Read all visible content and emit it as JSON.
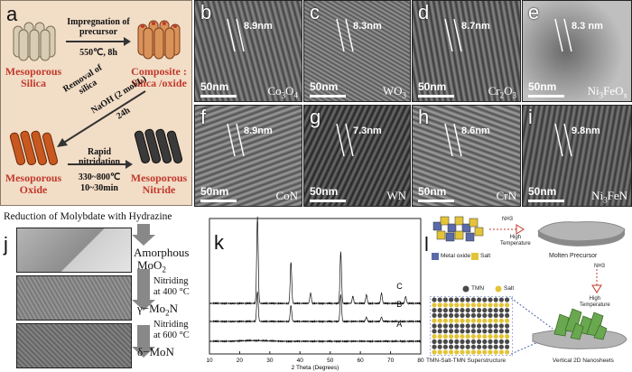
{
  "panels": {
    "a": {
      "label": "a",
      "mesoporous_silica": "Mesoporous Silica",
      "impregnation": "Impregnation of precursor",
      "impregnation_cond": "550℃, 8h",
      "composite": "Composite : Silica /oxide",
      "removal": "Removal of silica",
      "removal_cond1": "NaOH (2 mol/L)",
      "removal_cond2": "24h",
      "nitridation": "Rapid nitridation",
      "nitridation_cond1": "330~800℃",
      "nitridation_cond2": "10~30min",
      "mesoporous_oxide": "Mesoporous Oxide",
      "mesoporous_nitride": "Mesoporous Nitride"
    },
    "tem": [
      {
        "label": "b",
        "dim": "8.9nm",
        "scale": "50nm",
        "material": "Co3O4",
        "mat_main": "Co",
        "mat_sub1": "3",
        "mat_mid": "O",
        "mat_sub2": "4",
        "mat_end": ""
      },
      {
        "label": "c",
        "dim": "8.3nm",
        "scale": "50nm",
        "material": "WO3",
        "mat_main": "WO",
        "mat_sub1": "3",
        "mat_mid": "",
        "mat_sub2": "",
        "mat_end": ""
      },
      {
        "label": "d",
        "dim": "8.7nm",
        "scale": "50nm",
        "material": "Cr2O3",
        "mat_main": "Cr",
        "mat_sub1": "2",
        "mat_mid": "O",
        "mat_sub2": "3",
        "mat_end": ""
      },
      {
        "label": "e",
        "dim": "8.3 nm",
        "scale": "50nm",
        "material": "Ni3FeOx",
        "mat_main": "Ni",
        "mat_sub1": "3",
        "mat_mid": "FeO",
        "mat_sub2": "x",
        "mat_end": ""
      },
      {
        "label": "f",
        "dim": "8.9nm",
        "scale": "50nm",
        "material": "CoN",
        "mat_main": "CoN",
        "mat_sub1": "",
        "mat_mid": "",
        "mat_sub2": "",
        "mat_end": ""
      },
      {
        "label": "g",
        "dim": "7.3nm",
        "scale": "50nm",
        "material": "WN",
        "mat_main": "WN",
        "mat_sub1": "",
        "mat_mid": "",
        "mat_sub2": "",
        "mat_end": ""
      },
      {
        "label": "h",
        "dim": "8.6nm",
        "scale": "50nm",
        "material": "CrN",
        "mat_main": "CrN",
        "mat_sub1": "",
        "mat_mid": "",
        "mat_sub2": "",
        "mat_end": ""
      },
      {
        "label": "i",
        "dim": "9.8nm",
        "scale": "50nm",
        "material": "Ni3FeN",
        "mat_main": "Ni",
        "mat_sub1": "3",
        "mat_mid": "FeN",
        "mat_sub2": "",
        "mat_end": ""
      }
    ],
    "j": {
      "label": "j",
      "title": "Reduction of Molybdate with Hydrazine",
      "step1": "Amorphous",
      "step1b": "MoO",
      "step1b_sub": "2",
      "arrow1a": "Nitriding",
      "arrow1b": "at 400 °C",
      "step2": "γ−Mo",
      "step2_sub": "2",
      "step2_end": "N",
      "arrow2a": "Nitriding",
      "arrow2b": "at 600 °C",
      "step3": "δ−MoN"
    },
    "k": {
      "label": "k",
      "xlabel": "2 Theta (Degrees)",
      "curve_labels": [
        "C",
        "B",
        "A"
      ]
    },
    "l": {
      "label": "l",
      "legend_metal_oxide": "Metal oxide",
      "legend_salt": "Salt",
      "nh3_1": "NH3",
      "high_temp_1a": "High",
      "high_temp_1b": "Temperature",
      "molten": "Molten Precursor",
      "nh3_2": "NH3",
      "high_temp_2a": "High",
      "high_temp_2b": "Temperature",
      "legend_tmn": "TMN",
      "legend_salt2": "Salt",
      "superstructure": "TMN-Salt-TMN Superstructure",
      "nanosheets": "Vertical 2D Nanosheets"
    }
  },
  "chart_data": {
    "type": "line",
    "xlabel": "2 Theta (Degrees)",
    "xlim": [
      10,
      80
    ],
    "x_ticks": [
      10,
      20,
      30,
      40,
      50,
      60,
      70,
      80
    ],
    "series": [
      {
        "name": "C",
        "peaks": [
          [
            25.9,
            1.0
          ],
          [
            37.0,
            0.48
          ],
          [
            43.5,
            0.12
          ],
          [
            53.5,
            0.6
          ],
          [
            57.5,
            0.08
          ],
          [
            62.0,
            0.1
          ],
          [
            67.0,
            0.12
          ],
          [
            75.0,
            0.08
          ]
        ]
      },
      {
        "name": "B",
        "peaks": [
          [
            25.9,
            0.55
          ],
          [
            37.0,
            0.3
          ],
          [
            53.5,
            0.5
          ],
          [
            62.0,
            0.08
          ],
          [
            67.0,
            0.08
          ]
        ]
      },
      {
        "name": "A",
        "peaks": [
          [
            25.0,
            0.06
          ]
        ]
      }
    ]
  }
}
